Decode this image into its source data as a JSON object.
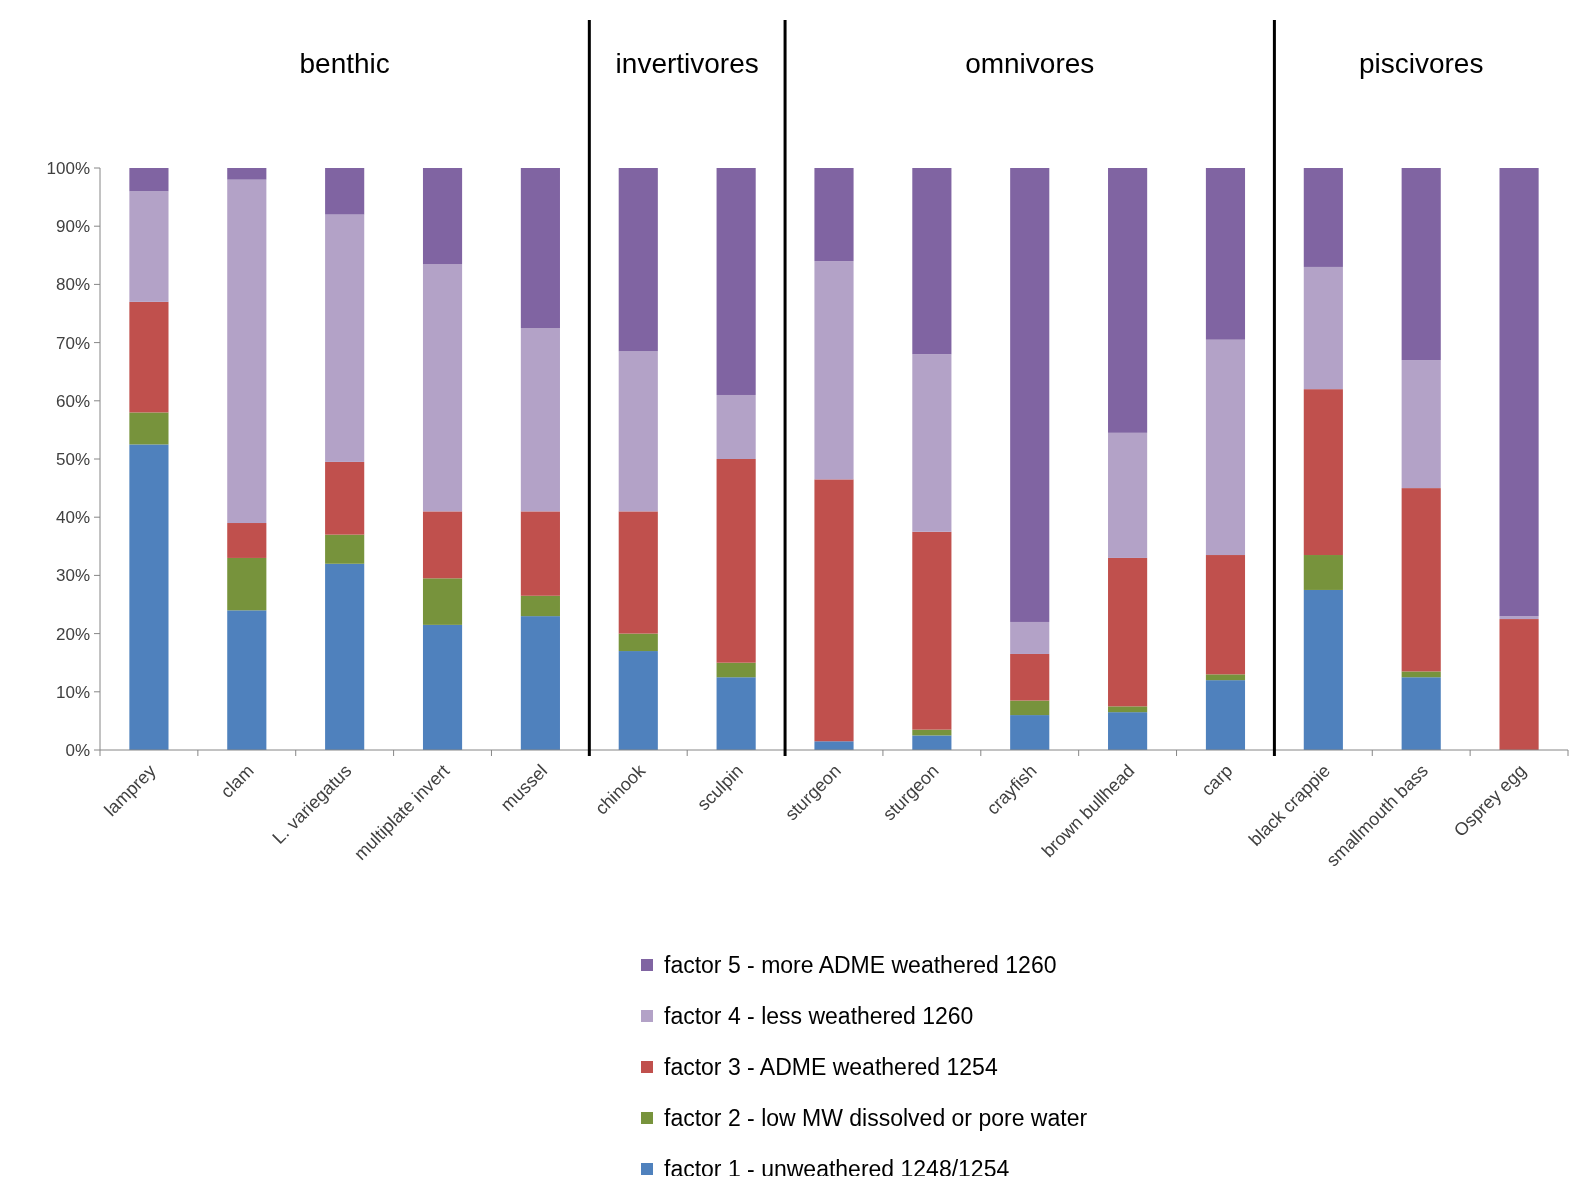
{
  "chart_data": {
    "type": "bar",
    "stacked": true,
    "categories": [
      "lamprey",
      "clam",
      "L. variegatus",
      "multiplate invert",
      "mussel",
      "chinook",
      "sculpin",
      "sturgeon",
      "sturgeon",
      "crayfish",
      "brown bullhead",
      "carp",
      "black crappie",
      "smallmouth bass",
      "Osprey egg"
    ],
    "series": [
      {
        "name": "factor 1 - unweathered 1248/1254",
        "color": "#4f81bd",
        "values": [
          52.5,
          24,
          32,
          21.5,
          23,
          17,
          12.5,
          1.5,
          2.5,
          6,
          6.5,
          12,
          27.5,
          12.5,
          0
        ]
      },
      {
        "name": "factor 2 - low MW dissolved or pore water",
        "color": "#77933c",
        "values": [
          5.5,
          9,
          5,
          8,
          3.5,
          3,
          2.5,
          0,
          1,
          2.5,
          1,
          1,
          6,
          1,
          0
        ]
      },
      {
        "name": "factor 3 - ADME weathered 1254",
        "color": "#c0504d",
        "values": [
          19,
          6,
          12.5,
          11.5,
          14.5,
          21,
          35,
          45,
          34,
          8,
          25.5,
          20.5,
          28.5,
          31.5,
          22.5
        ]
      },
      {
        "name": "factor 4 - less weathered 1260",
        "color": "#b3a2c7",
        "values": [
          19,
          59,
          42.5,
          42.5,
          31.5,
          27.5,
          11,
          37.5,
          30.5,
          5.5,
          21.5,
          37,
          21,
          22,
          0.5
        ]
      },
      {
        "name": "factor 5 - more ADME weathered 1260",
        "color": "#8064a2",
        "values": [
          4,
          2,
          8,
          16.5,
          27.5,
          31.5,
          39,
          16,
          32,
          78,
          45.5,
          29.5,
          17,
          33,
          77
        ]
      }
    ],
    "ylim": [
      0,
      100
    ],
    "yticks": [
      {
        "value": 0,
        "label": "0%"
      },
      {
        "value": 10,
        "label": "10%"
      },
      {
        "value": 20,
        "label": "20%"
      },
      {
        "value": 30,
        "label": "30%"
      },
      {
        "value": 40,
        "label": "40%"
      },
      {
        "value": 50,
        "label": "50%"
      },
      {
        "value": 60,
        "label": "60%"
      },
      {
        "value": 70,
        "label": "70%"
      },
      {
        "value": 80,
        "label": "80%"
      },
      {
        "value": 90,
        "label": "90%"
      },
      {
        "value": 100,
        "label": "100%"
      }
    ],
    "annotations": [
      "benthic",
      "invertivores",
      "omnivores",
      "piscivores"
    ],
    "grid": false,
    "legend": "bottom"
  }
}
